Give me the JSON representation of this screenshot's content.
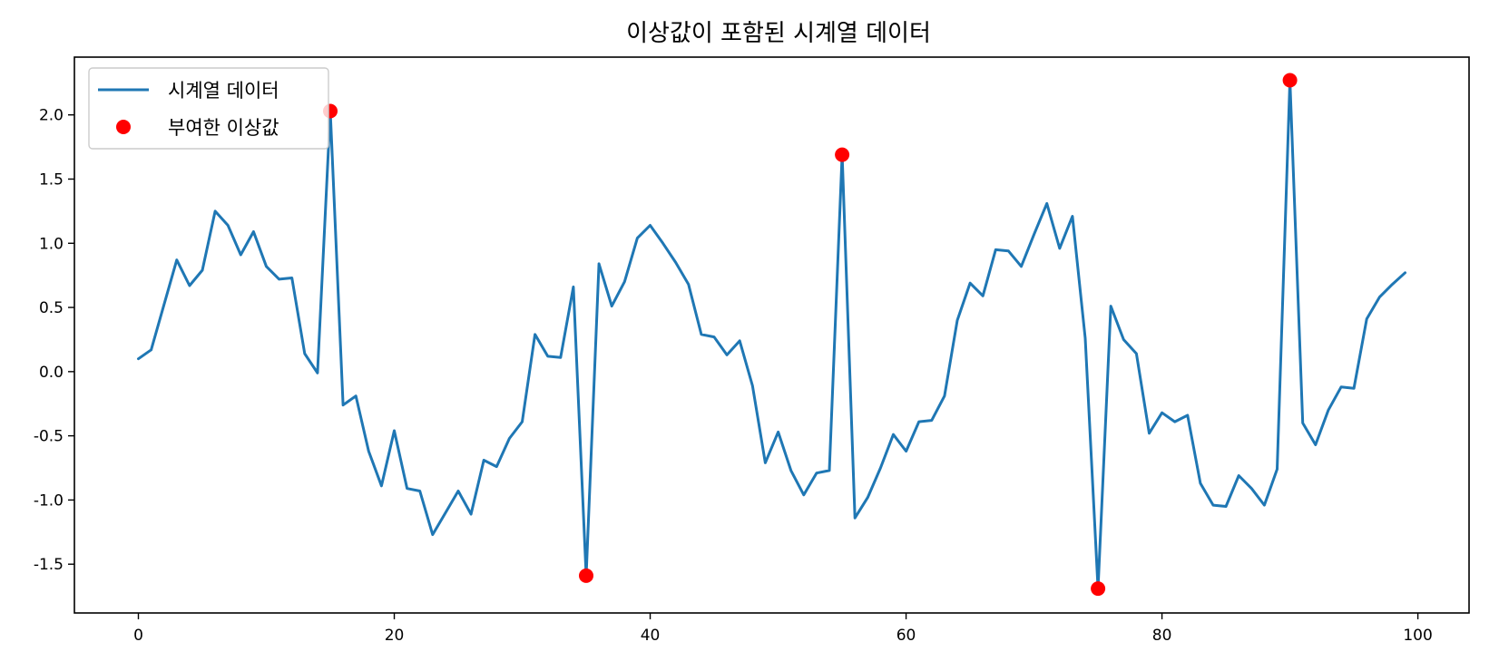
{
  "chart_data": {
    "type": "line",
    "title": "이상값이 포함된 시계열 데이터",
    "xlabel": "",
    "ylabel": "",
    "xlim": [
      -5,
      104
    ],
    "ylim": [
      -1.88,
      2.45
    ],
    "x_ticks": [
      0,
      20,
      40,
      60,
      80,
      100
    ],
    "x_tick_labels": [
      "0",
      "20",
      "40",
      "60",
      "80",
      "100"
    ],
    "y_ticks": [
      -1.5,
      -1.0,
      -0.5,
      0.0,
      0.5,
      1.0,
      1.5,
      2.0
    ],
    "y_tick_labels": [
      "-1.5",
      "-1.0",
      "-0.5",
      "0.0",
      "0.5",
      "1.0",
      "1.5",
      "2.0"
    ],
    "grid": false,
    "legend_position": "top-left",
    "series": [
      {
        "name": "시계열 데이터",
        "kind": "line",
        "color": "#1f77b4",
        "x": [
          0,
          1,
          2,
          3,
          4,
          5,
          6,
          7,
          8,
          9,
          10,
          11,
          12,
          13,
          14,
          15,
          16,
          17,
          18,
          19,
          20,
          21,
          22,
          23,
          24,
          25,
          26,
          27,
          28,
          29,
          30,
          31,
          32,
          33,
          34,
          35,
          36,
          37,
          38,
          39,
          40,
          41,
          42,
          43,
          44,
          45,
          46,
          47,
          48,
          49,
          50,
          51,
          52,
          53,
          54,
          55,
          56,
          57,
          58,
          59,
          60,
          61,
          62,
          63,
          64,
          65,
          66,
          67,
          68,
          69,
          70,
          71,
          72,
          73,
          74,
          75,
          76,
          77,
          78,
          79,
          80,
          81,
          82,
          83,
          84,
          85,
          86,
          87,
          88,
          89,
          90,
          91,
          92,
          93,
          94,
          95,
          96,
          97,
          98,
          99
        ],
        "y": [
          0.1,
          0.17,
          0.52,
          0.87,
          0.67,
          0.79,
          1.25,
          1.14,
          0.91,
          1.09,
          0.82,
          0.72,
          0.73,
          0.14,
          -0.01,
          2.03,
          -0.26,
          -0.19,
          -0.62,
          -0.89,
          -0.46,
          -0.91,
          -0.93,
          -1.27,
          -1.1,
          -0.93,
          -1.11,
          -0.69,
          -0.74,
          -0.52,
          -0.39,
          0.29,
          0.12,
          0.11,
          0.66,
          -1.59,
          0.84,
          0.51,
          0.7,
          1.04,
          1.14,
          1.0,
          0.85,
          0.68,
          0.29,
          0.27,
          0.13,
          0.24,
          -0.11,
          -0.71,
          -0.47,
          -0.77,
          -0.96,
          -0.79,
          -0.77,
          1.69,
          -1.14,
          -0.98,
          -0.75,
          -0.49,
          -0.62,
          -0.39,
          -0.38,
          -0.19,
          0.4,
          0.69,
          0.59,
          0.95,
          0.94,
          0.82,
          1.07,
          1.31,
          0.96,
          1.21,
          0.26,
          -1.69,
          0.51,
          0.25,
          0.14,
          -0.48,
          -0.32,
          -0.39,
          -0.34,
          -0.87,
          -1.04,
          -1.05,
          -0.81,
          -0.91,
          -1.04,
          -0.76,
          2.27,
          -0.4,
          -0.57,
          -0.3,
          -0.12,
          -0.13,
          0.41,
          0.58,
          0.68,
          0.77
        ]
      },
      {
        "name": "부여한 이상값",
        "kind": "scatter",
        "color": "#ff0000",
        "x": [
          15,
          35,
          55,
          75,
          90
        ],
        "y": [
          2.03,
          -1.59,
          1.69,
          -1.69,
          2.27
        ]
      }
    ]
  }
}
